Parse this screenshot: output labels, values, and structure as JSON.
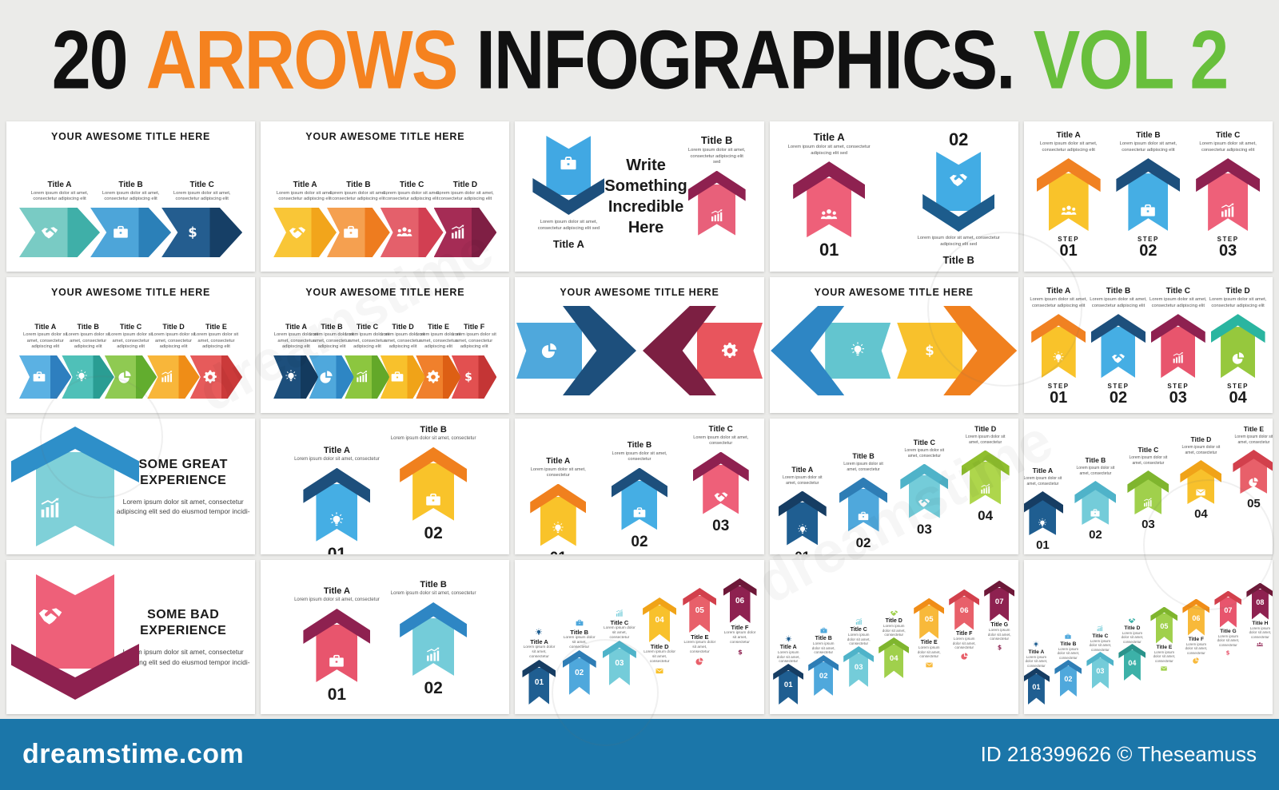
{
  "header": {
    "num": "20",
    "arrows": "ARROWS",
    "infographics": "INFOGRAPHICS.",
    "vol": "VOL 2",
    "colors": {
      "num": "#111111",
      "arrows": "#f5821f",
      "infographics": "#111111",
      "vol": "#68bf3c"
    }
  },
  "footer": {
    "brand": "dreamstime.com",
    "credit": "ID 218399626 © Theseamuss",
    "bar_color": "#1b76a9",
    "watermark": "dreamstime"
  },
  "common": {
    "step": "STEP",
    "lorem1": "Lorem ipsum dolor sit amet, consectetur",
    "lorem2": "Lorem ipsum dolor sit amet, consectetur adipiscing elit",
    "loremSed": "Lorem ipsum dolor sit amet, consectetur adipiscing elit sed",
    "lorem4": "Lorem ipsum dolor sit amet, consectetur adipiscing elit sed do eiusmod tempor incidi-"
  },
  "slides": [
    {
      "type": "chevron-row",
      "title": "YOUR AWESOME TITLE HERE",
      "desc": "lorem2",
      "items": [
        {
          "label": "Title A",
          "icon": "handshake",
          "body": "#79cbc4",
          "head": "#3fafa8"
        },
        {
          "label": "Title B",
          "icon": "briefcase",
          "body": "#4da5d9",
          "head": "#2b80b8"
        },
        {
          "label": "Title C",
          "icon": "dollar",
          "body": "#245d8f",
          "head": "#163f66"
        }
      ]
    },
    {
      "type": "chevron-row",
      "title": "YOUR AWESOME TITLE HERE",
      "desc": "lorem2",
      "items": [
        {
          "label": "Title A",
          "icon": "handshake",
          "body": "#f9c637",
          "head": "#f2a51b"
        },
        {
          "label": "Title B",
          "icon": "briefcase",
          "body": "#f5a050",
          "head": "#ee7c1f"
        },
        {
          "label": "Title C",
          "icon": "people",
          "body": "#e4606b",
          "head": "#d23f52"
        },
        {
          "label": "Title D",
          "icon": "chart",
          "body": "#a52c55",
          "head": "#7f1f44"
        }
      ]
    },
    {
      "type": "vertical-pair",
      "desc": "loremSed",
      "center": [
        "Write",
        "Something",
        "Incredible",
        "Here"
      ],
      "left": {
        "label": "Title A",
        "icon": "briefcase",
        "pen": "#41a8e3",
        "hat": "#1d4f7c"
      },
      "right": {
        "label": "Title B",
        "icon": "chart",
        "pen": "#e8607a",
        "hat": "#8e2150"
      }
    },
    {
      "type": "updown-pair",
      "desc": "loremSed",
      "left": {
        "label": "Title A",
        "num": "01",
        "icon": "people",
        "pen": "#ee6079",
        "hat": "#8e2150"
      },
      "right": {
        "label": "Title B",
        "num": "02",
        "icon": "handshake",
        "pen": "#42ace4",
        "hat": "#1d5c8c"
      }
    },
    {
      "type": "step-row",
      "desc": "lorem2",
      "items": [
        {
          "label": "Title A",
          "step": "01",
          "icon": "people",
          "pen": "#f9c32a",
          "hat": "#f08122"
        },
        {
          "label": "Title B",
          "step": "02",
          "icon": "briefcase",
          "pen": "#45aee4",
          "hat": "#1d4f7c"
        },
        {
          "label": "Title C",
          "step": "03",
          "icon": "chart",
          "pen": "#ee6079",
          "hat": "#8e2150"
        }
      ]
    },
    {
      "type": "chevron-row",
      "title": "YOUR AWESOME TITLE HERE",
      "desc": "lorem2",
      "items": [
        {
          "label": "Title A",
          "icon": "briefcase",
          "body": "#5bb1e3",
          "head": "#2e7fbf"
        },
        {
          "label": "Title B",
          "icon": "bulb",
          "body": "#4fc0b8",
          "head": "#2a9d93"
        },
        {
          "label": "Title C",
          "icon": "pie",
          "body": "#8fca52",
          "head": "#62ad2e"
        },
        {
          "label": "Title D",
          "icon": "chart",
          "body": "#f8b63a",
          "head": "#ef8d17"
        },
        {
          "label": "Title E",
          "icon": "gear",
          "body": "#e65b5b",
          "head": "#cb3a3a"
        }
      ]
    },
    {
      "type": "chevron-row",
      "title": "YOUR AWESOME TITLE HERE",
      "desc": "lorem2",
      "items": [
        {
          "label": "Title A",
          "icon": "bulb",
          "body": "#1d4f7c",
          "head": "#133a5e"
        },
        {
          "label": "Title B",
          "icon": "pie",
          "body": "#4fa8dc",
          "head": "#2e86c4"
        },
        {
          "label": "Title C",
          "icon": "chart",
          "body": "#8cc63f",
          "head": "#63a829"
        },
        {
          "label": "Title D",
          "icon": "briefcase",
          "body": "#f8c12c",
          "head": "#f0a318"
        },
        {
          "label": "Title E",
          "icon": "gear",
          "body": "#f0802c",
          "head": "#dd5f14"
        },
        {
          "label": "Title F",
          "icon": "dollar",
          "body": "#e25050",
          "head": "#c43535"
        }
      ]
    },
    {
      "type": "facing-in",
      "title": "YOUR AWESOME TITLE HERE",
      "desc": "lorem1",
      "left": {
        "label": "Title A",
        "icon": "pie",
        "pen": "#4fa8dc",
        "chev": "#1d4f7c"
      },
      "right": {
        "label": "Title B",
        "icon": "gear",
        "pen": "#e8555d",
        "chev": "#7c1f42"
      }
    },
    {
      "type": "facing-out",
      "title": "YOUR AWESOME TITLE HERE",
      "desc": "lorem1",
      "left": {
        "label": "Title A",
        "icon": "bulb",
        "pen": "#63c5cf",
        "chev": "#2e86c4"
      },
      "right": {
        "label": "Title B",
        "icon": "dollar",
        "pen": "#f8c12c",
        "chev": "#f0801e"
      }
    },
    {
      "type": "step-row",
      "desc": "lorem2",
      "items": [
        {
          "label": "Title A",
          "step": "01",
          "icon": "bulb",
          "pen": "#f9c32a",
          "hat": "#f08122"
        },
        {
          "label": "Title B",
          "step": "02",
          "icon": "handshake",
          "pen": "#45aee4",
          "hat": "#1d4f7c"
        },
        {
          "label": "Title C",
          "step": "03",
          "icon": "chart",
          "pen": "#e8556d",
          "hat": "#8e2150"
        },
        {
          "label": "Title D",
          "step": "04",
          "icon": "pie",
          "pen": "#96c83d",
          "hat": "#2ab5a0"
        }
      ]
    },
    {
      "type": "experience",
      "dir": "up",
      "desc": "lorem4",
      "heading": [
        "SOME GREAT",
        "EXPERIENCE"
      ],
      "icon": "chart",
      "pen": "#7fd0d8",
      "hat": "#2e8fc9"
    },
    {
      "type": "staggered",
      "desc": "lorem1",
      "rise": 26,
      "items": [
        {
          "label": "Title A",
          "num": "01",
          "icon": "bulb",
          "pen": "#45aee4",
          "hat": "#1d4f7c"
        },
        {
          "label": "Title B",
          "num": "02",
          "icon": "briefcase",
          "pen": "#f9c32a",
          "hat": "#f0801e"
        }
      ]
    },
    {
      "type": "staggered",
      "desc": "lorem1",
      "rise": 20,
      "items": [
        {
          "label": "Title A",
          "num": "01",
          "icon": "bulb",
          "pen": "#f9c32a",
          "hat": "#f0801e"
        },
        {
          "label": "Title B",
          "num": "02",
          "icon": "briefcase",
          "pen": "#45aee4",
          "hat": "#1d4f7c"
        },
        {
          "label": "Title C",
          "num": "03",
          "icon": "handshake",
          "pen": "#ee6079",
          "hat": "#8e2150"
        }
      ]
    },
    {
      "type": "staggered",
      "desc": "lorem1",
      "rise": 17,
      "items": [
        {
          "label": "Title A",
          "num": "01",
          "icon": "bulb",
          "pen": "#1f5e91",
          "hat": "#163d63"
        },
        {
          "label": "Title B",
          "num": "02",
          "icon": "briefcase",
          "pen": "#4fa8dc",
          "hat": "#2e7db5"
        },
        {
          "label": "Title C",
          "num": "03",
          "icon": "handshake",
          "pen": "#74ccd9",
          "hat": "#4fb3c9"
        },
        {
          "label": "Title D",
          "num": "04",
          "icon": "chart",
          "pen": "#aed64c",
          "hat": "#8fbe2e"
        }
      ]
    },
    {
      "type": "staggered",
      "desc": "lorem1",
      "rise": 13,
      "items": [
        {
          "label": "Title A",
          "num": "01",
          "icon": "bulb",
          "pen": "#1f5e91",
          "hat": "#163d63"
        },
        {
          "label": "Title B",
          "num": "02",
          "icon": "briefcase",
          "pen": "#74ccd9",
          "hat": "#4fb3c9"
        },
        {
          "label": "Title C",
          "num": "03",
          "icon": "chart",
          "pen": "#a0d04c",
          "hat": "#7fb52e"
        },
        {
          "label": "Title D",
          "num": "04",
          "icon": "envelope",
          "pen": "#f8c12c",
          "hat": "#f0a318"
        },
        {
          "label": "Title E",
          "num": "05",
          "icon": "pie",
          "pen": "#e8606a",
          "hat": "#d2404c"
        }
      ]
    },
    {
      "type": "experience",
      "dir": "down",
      "desc": "lorem4",
      "heading": [
        "SOME BAD",
        "EXPERIENCE"
      ],
      "icon": "handshake",
      "pen": "#ee6079",
      "hat": "#8e2150"
    },
    {
      "type": "staggered",
      "desc": "lorem1",
      "rise": 8,
      "items": [
        {
          "label": "Title A",
          "num": "01",
          "icon": "briefcase",
          "pen": "#e8556d",
          "hat": "#8e2150"
        },
        {
          "label": "Title B",
          "num": "02",
          "icon": "chart",
          "pen": "#74ccd9",
          "hat": "#2e86c4"
        }
      ]
    },
    {
      "type": "staircase",
      "desc": "lorem1",
      "items": [
        {
          "label": "Title A",
          "num": "01",
          "icon": "bulb",
          "pen": "#1f5e91",
          "hat": "#163d63",
          "pos": "above"
        },
        {
          "label": "Title B",
          "num": "02",
          "icon": "briefcase",
          "pen": "#4fa8dc",
          "hat": "#2e7db5",
          "pos": "above"
        },
        {
          "label": "Title C",
          "num": "03",
          "icon": "chart",
          "pen": "#74ccd9",
          "hat": "#4fb3c9",
          "pos": "above"
        },
        {
          "label": "Title D",
          "num": "04",
          "icon": "envelope",
          "pen": "#f8c12c",
          "hat": "#f0a318",
          "pos": "below"
        },
        {
          "label": "Title E",
          "num": "05",
          "icon": "pie",
          "pen": "#e8606a",
          "hat": "#d2404c",
          "pos": "below"
        },
        {
          "label": "Title F",
          "num": "06",
          "icon": "dollar",
          "pen": "#8e2150",
          "hat": "#6d1838",
          "pos": "below"
        }
      ]
    },
    {
      "type": "staircase",
      "desc": "lorem1",
      "items": [
        {
          "label": "Title A",
          "num": "01",
          "icon": "bulb",
          "pen": "#1f5e91",
          "hat": "#163d63",
          "pos": "above"
        },
        {
          "label": "Title B",
          "num": "02",
          "icon": "briefcase",
          "pen": "#4fa8dc",
          "hat": "#2e7db5",
          "pos": "above"
        },
        {
          "label": "Title C",
          "num": "03",
          "icon": "chart",
          "pen": "#74ccd9",
          "hat": "#4fb3c9",
          "pos": "above"
        },
        {
          "label": "Title D",
          "num": "04",
          "icon": "handshake",
          "pen": "#a0d04c",
          "hat": "#7fb52e",
          "pos": "above"
        },
        {
          "label": "Title E",
          "num": "05",
          "icon": "envelope",
          "pen": "#f8b93a",
          "hat": "#f08d17",
          "pos": "below"
        },
        {
          "label": "Title F",
          "num": "06",
          "icon": "pie",
          "pen": "#e8606a",
          "hat": "#d2404c",
          "pos": "below"
        },
        {
          "label": "Title G",
          "num": "07",
          "icon": "dollar",
          "pen": "#8e2150",
          "hat": "#6d1838",
          "pos": "below"
        }
      ]
    },
    {
      "type": "staircase",
      "desc": "lorem1",
      "items": [
        {
          "label": "Title A",
          "num": "01",
          "icon": "bulb",
          "pen": "#1f5e91",
          "hat": "#163d63",
          "pos": "above"
        },
        {
          "label": "Title B",
          "num": "02",
          "icon": "briefcase",
          "pen": "#4fa8dc",
          "hat": "#2e7db5",
          "pos": "above"
        },
        {
          "label": "Title C",
          "num": "03",
          "icon": "chart",
          "pen": "#74ccd9",
          "hat": "#4fb3c9",
          "pos": "above"
        },
        {
          "label": "Title D",
          "num": "04",
          "icon": "handshake",
          "pen": "#3cb1a8",
          "hat": "#2a938b",
          "pos": "above"
        },
        {
          "label": "Title E",
          "num": "05",
          "icon": "envelope",
          "pen": "#a0d04c",
          "hat": "#7fb52e",
          "pos": "below"
        },
        {
          "label": "Title F",
          "num": "06",
          "icon": "pie",
          "pen": "#f8b93a",
          "hat": "#f08d17",
          "pos": "below"
        },
        {
          "label": "Title G",
          "num": "07",
          "icon": "dollar",
          "pen": "#e8556d",
          "hat": "#d2404c",
          "pos": "below"
        },
        {
          "label": "Title H",
          "num": "08",
          "icon": "people",
          "pen": "#8e2150",
          "hat": "#6d1838",
          "pos": "below"
        }
      ]
    }
  ]
}
